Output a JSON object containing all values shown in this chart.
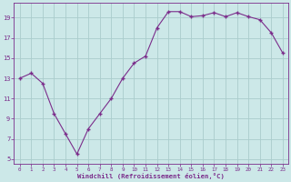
{
  "x": [
    0,
    1,
    2,
    3,
    4,
    5,
    6,
    7,
    8,
    9,
    10,
    11,
    12,
    13,
    14,
    15,
    16,
    17,
    18,
    19,
    20,
    21,
    22,
    23
  ],
  "y": [
    13.0,
    13.5,
    12.5,
    9.5,
    7.5,
    5.5,
    8.0,
    9.5,
    11.0,
    13.0,
    14.5,
    15.2,
    18.0,
    19.6,
    19.6,
    19.1,
    19.2,
    19.5,
    19.1,
    19.5,
    19.1,
    18.8,
    17.5,
    15.5
  ],
  "line_color": "#7b2d8b",
  "marker_color": "#7b2d8b",
  "bg_color": "#cce8e8",
  "grid_color": "#aacccc",
  "xlabel": "Windchill (Refroidissement éolien,°C)",
  "xlabel_color": "#7b2d8b",
  "tick_color": "#7b2d8b",
  "ylim": [
    4.5,
    20.5
  ],
  "xlim": [
    -0.5,
    23.5
  ],
  "yticks": [
    5,
    7,
    9,
    11,
    13,
    15,
    17,
    19
  ],
  "xtick_labels": [
    "0",
    "1",
    "2",
    "3",
    "4",
    "5",
    "6",
    "7",
    "8",
    "9",
    "10",
    "11",
    "12",
    "13",
    "14",
    "15",
    "16",
    "17",
    "18",
    "19",
    "20",
    "21",
    "22",
    "23"
  ]
}
